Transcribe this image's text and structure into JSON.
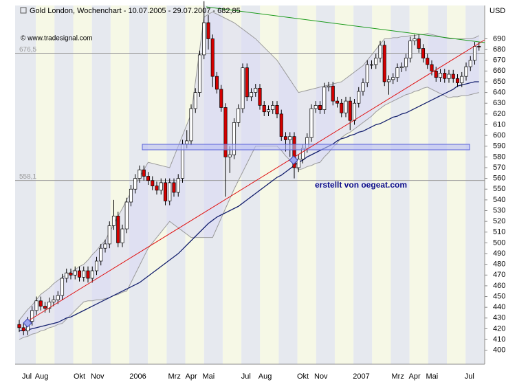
{
  "chart_data": {
    "type": "candlestick",
    "title": "Gold London, Wochenchart - 10.07.2005 - 29.07.2007 - 682,85",
    "source": "© www.tradesignal.com",
    "annotation": "erstellt von oegeat.com",
    "unit": "USD",
    "categories": [
      "Jul",
      null,
      null,
      "Aug",
      null,
      null,
      null,
      null,
      null,
      null,
      null,
      null,
      "Okt",
      null,
      null,
      null,
      "Nov",
      null,
      null,
      null,
      null,
      null,
      null,
      null,
      null,
      "2006",
      null,
      null,
      null,
      null,
      null,
      null,
      null,
      null,
      "Mrz",
      null,
      null,
      null,
      "Apr",
      null,
      null,
      null,
      "Mai",
      null,
      null,
      null,
      null,
      null,
      null,
      null,
      null,
      "Jul",
      null,
      null,
      null,
      "Aug",
      null,
      null,
      null,
      null,
      null,
      null,
      null,
      null,
      "Okt",
      null,
      null,
      null,
      "Nov",
      null,
      null,
      null,
      null,
      null,
      null,
      null,
      null,
      "2007",
      null,
      null,
      null,
      null,
      null,
      null,
      null,
      null,
      "Mrz",
      null,
      null,
      null,
      "Apr",
      null,
      null,
      null,
      "Mai",
      null,
      null,
      null,
      null,
      null,
      null,
      null,
      null,
      "Jul",
      null,
      null,
      null,
      null
    ],
    "open": [
      424,
      421,
      418,
      427,
      437,
      446,
      441,
      439,
      445,
      447,
      451,
      467,
      472,
      470,
      474,
      468,
      474,
      467,
      474,
      483,
      495,
      499,
      516,
      525,
      500,
      513,
      538,
      550,
      560,
      568,
      562,
      558,
      553,
      549,
      556,
      539,
      556,
      547,
      560,
      592,
      595,
      625,
      640,
      675,
      705,
      690,
      655,
      643,
      626,
      580,
      582,
      612,
      625,
      663,
      636,
      640,
      644,
      628,
      622,
      624,
      628,
      620,
      599,
      596,
      599,
      570,
      578,
      588,
      598,
      625,
      628,
      624,
      645,
      646,
      632,
      630,
      621,
      632,
      614,
      630,
      641,
      649,
      666,
      666,
      672,
      684,
      650,
      652,
      654,
      663,
      664,
      672,
      688,
      690,
      681,
      672,
      666,
      660,
      654,
      658,
      653,
      657,
      653,
      649,
      655,
      664,
      670,
      683
    ],
    "high": [
      428,
      425,
      431,
      441,
      450,
      450,
      445,
      449,
      451,
      455,
      471,
      476,
      476,
      478,
      478,
      478,
      478,
      478,
      487,
      499,
      503,
      520,
      540,
      529,
      517,
      542,
      554,
      564,
      572,
      572,
      566,
      562,
      557,
      560,
      560,
      560,
      560,
      564,
      596,
      605,
      629,
      644,
      679,
      725,
      712,
      694,
      659,
      647,
      630,
      590,
      616,
      629,
      667,
      667,
      644,
      648,
      648,
      632,
      628,
      632,
      632,
      624,
      603,
      603,
      603,
      582,
      592,
      602,
      629,
      632,
      632,
      649,
      650,
      650,
      636,
      634,
      636,
      636,
      634,
      645,
      653,
      670,
      670,
      676,
      688,
      688,
      656,
      658,
      667,
      668,
      676,
      692,
      694,
      694,
      685,
      676,
      670,
      664,
      662,
      662,
      661,
      661,
      657,
      659,
      668,
      674,
      687,
      687
    ],
    "low": [
      417,
      414,
      414,
      423,
      433,
      437,
      435,
      435,
      441,
      443,
      447,
      463,
      466,
      466,
      464,
      464,
      463,
      463,
      470,
      479,
      491,
      495,
      512,
      496,
      496,
      509,
      534,
      546,
      556,
      558,
      554,
      549,
      545,
      545,
      535,
      535,
      543,
      543,
      556,
      588,
      591,
      621,
      636,
      671,
      680,
      645,
      639,
      622,
      543,
      565,
      578,
      608,
      621,
      632,
      632,
      636,
      624,
      618,
      618,
      620,
      616,
      595,
      585,
      580,
      560,
      566,
      574,
      584,
      594,
      621,
      620,
      620,
      641,
      628,
      626,
      617,
      617,
      605,
      610,
      626,
      637,
      645,
      662,
      662,
      668,
      646,
      638,
      648,
      650,
      659,
      660,
      668,
      684,
      677,
      668,
      662,
      656,
      650,
      650,
      649,
      649,
      649,
      645,
      645,
      651,
      660,
      666,
      679
    ],
    "close": [
      421,
      418,
      427,
      437,
      446,
      441,
      439,
      445,
      447,
      451,
      467,
      472,
      470,
      474,
      468,
      474,
      467,
      474,
      483,
      495,
      499,
      516,
      525,
      500,
      513,
      538,
      550,
      560,
      568,
      562,
      558,
      553,
      549,
      556,
      539,
      556,
      547,
      560,
      592,
      595,
      625,
      640,
      675,
      705,
      690,
      655,
      643,
      626,
      580,
      582,
      612,
      625,
      663,
      636,
      640,
      644,
      628,
      622,
      624,
      628,
      620,
      599,
      596,
      599,
      570,
      578,
      588,
      598,
      625,
      628,
      624,
      645,
      646,
      632,
      630,
      621,
      632,
      614,
      630,
      641,
      649,
      666,
      666,
      672,
      684,
      650,
      652,
      654,
      663,
      664,
      672,
      688,
      690,
      681,
      672,
      666,
      660,
      654,
      658,
      653,
      657,
      653,
      649,
      655,
      664,
      670,
      683,
      682.85
    ],
    "ma": [
      418,
      419,
      419,
      420,
      421,
      422,
      423,
      424,
      425,
      426,
      428,
      430,
      431,
      433,
      435,
      437,
      439,
      441,
      443,
      445,
      447,
      449,
      451,
      453,
      455,
      457,
      459,
      461,
      463,
      466,
      469,
      472,
      475,
      478,
      481,
      484,
      487,
      490,
      494,
      498,
      502,
      506,
      510,
      514,
      518,
      521,
      524,
      526,
      528,
      530,
      532,
      534,
      537,
      540,
      543,
      546,
      549,
      552,
      555,
      558,
      561,
      563,
      566,
      569,
      572,
      575,
      577,
      580,
      582,
      584,
      586,
      588,
      590,
      592,
      595,
      597,
      598,
      600,
      601,
      603,
      604,
      606,
      608,
      610,
      611,
      613,
      615,
      617,
      618,
      620,
      621,
      623,
      625,
      627,
      629,
      631,
      633,
      635,
      637,
      639,
      641,
      643,
      646,
      647,
      648,
      649,
      650,
      650
    ],
    "upper": [
      428,
      433,
      438,
      442,
      447,
      452,
      455,
      458,
      462,
      465,
      468,
      470,
      473,
      475,
      478,
      480,
      484,
      489,
      493,
      498,
      502,
      510,
      517,
      525,
      532,
      540,
      547,
      554,
      561,
      568,
      575,
      574,
      573,
      572,
      571,
      570,
      580,
      590,
      600,
      610,
      620,
      650,
      680,
      710,
      713,
      715,
      713,
      711,
      709,
      707,
      705,
      702,
      699,
      696,
      693,
      690,
      686,
      682,
      678,
      674,
      670,
      664,
      658,
      652,
      646,
      640,
      641,
      642,
      643,
      644,
      645,
      646,
      647,
      648,
      649,
      650,
      653,
      656,
      659,
      662,
      665,
      670,
      675,
      680,
      685,
      690,
      690,
      691,
      691,
      692,
      692,
      693,
      693,
      694,
      694,
      695,
      694,
      693,
      692,
      691,
      690,
      690,
      690,
      690,
      690,
      690,
      691,
      693
    ],
    "lower": [
      410,
      412,
      413,
      415,
      416,
      418,
      419,
      421,
      422,
      424,
      425,
      429,
      433,
      437,
      441,
      445,
      446,
      446,
      447,
      447,
      448,
      449,
      451,
      452,
      454,
      455,
      463,
      471,
      479,
      487,
      495,
      500,
      505,
      510,
      515,
      520,
      517,
      514,
      511,
      508,
      505,
      505,
      505,
      505,
      505,
      505,
      514,
      523,
      532,
      541,
      550,
      558,
      566,
      574,
      582,
      590,
      590,
      590,
      590,
      590,
      590,
      586,
      581,
      577,
      572,
      568,
      569,
      571,
      572,
      574,
      575,
      580,
      584,
      589,
      593,
      598,
      601,
      603,
      606,
      609,
      612,
      615,
      618,
      622,
      625,
      628,
      630,
      632,
      634,
      636,
      638,
      639,
      641,
      642,
      644,
      645,
      643,
      641,
      639,
      637,
      635,
      636,
      636,
      637,
      637,
      638,
      639,
      640
    ],
    "colors": {
      "up": "#ffffff",
      "down": "#d40000",
      "outline": "#000000",
      "ma": "#14206e",
      "band": "#9a9a9a",
      "band_fill": "#d8d8f4"
    },
    "hlines": [
      {
        "value": 676.5,
        "label": "676,5"
      },
      {
        "value": 558.1,
        "label": "558,1"
      }
    ],
    "ylim": [
      387,
      721
    ],
    "yticks": [
      400,
      410,
      420,
      430,
      440,
      450,
      460,
      470,
      480,
      490,
      500,
      510,
      520,
      530,
      540,
      550,
      560,
      570,
      580,
      590,
      600,
      610,
      620,
      630,
      640,
      650,
      660,
      670,
      680,
      690
    ]
  }
}
